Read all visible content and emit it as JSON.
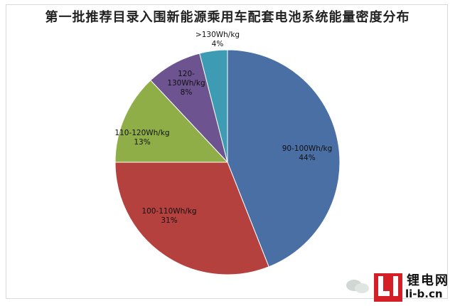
{
  "chart_data": {
    "type": "pie",
    "title": "第一批推荐目录入围新能源乘用车配套电池系统能量密度分布",
    "slices": [
      {
        "label": "90-100Wh/kg",
        "pct_label": "44%",
        "value": 44,
        "color": "#4a6fa5"
      },
      {
        "label": "100-110Wh/kg",
        "pct_label": "31%",
        "value": 31,
        "color": "#b5413e"
      },
      {
        "label": "110-120Wh/kg",
        "pct_label": "13%",
        "value": 13,
        "color": "#8fae47"
      },
      {
        "label": "120-130Wh/kg",
        "pct_label": "8%",
        "value": 8,
        "color": "#6d5490"
      },
      {
        "label": ">130Wh/kg",
        "pct_label": "4%",
        "value": 4,
        "color": "#3d9bb4"
      }
    ],
    "legend": false
  },
  "watermark": {
    "brand": "锂电网",
    "site": "li-b.cn",
    "logo_icon": "li-logo-icon",
    "wechat_icon": "wechat-icon"
  }
}
